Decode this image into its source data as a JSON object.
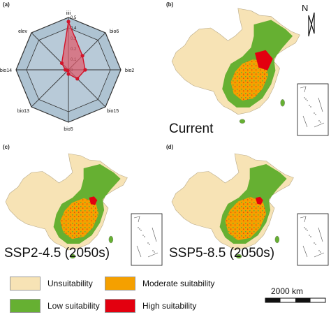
{
  "panels": {
    "a": "(a)",
    "b": "(b)",
    "c": "(c)",
    "d": "(d)"
  },
  "scenarios": {
    "current": "Current",
    "ssp245": "SSP2-4.5 (2050s)",
    "ssp585": "SSP5-8.5 (2050s)"
  },
  "north_label": "N",
  "scale_bar": "2000 km",
  "legend": [
    {
      "label": "Unsuitability",
      "color": "#f7e3b5"
    },
    {
      "label": "Moderate suitability",
      "color": "#f5a000"
    },
    {
      "label": "Low suitability",
      "color": "#66b032"
    },
    {
      "label": "High suitability",
      "color": "#e3000f"
    }
  ],
  "chart_data": {
    "type": "radar",
    "axes": [
      "iiii",
      "bio6",
      "bio2",
      "bio15",
      "bio5",
      "bio13",
      "bio14",
      "elev"
    ],
    "values": [
      0.46,
      0.19,
      0.16,
      0.12,
      0.04,
      0.01,
      0.03,
      0.09
    ],
    "rmax": 0.5,
    "ticks": [
      "0",
      "0.1",
      "0.2",
      "0.3",
      "0.4",
      "0.5"
    ],
    "colors": {
      "fill": "#e05a6a",
      "stroke": "#d1142a"
    }
  }
}
